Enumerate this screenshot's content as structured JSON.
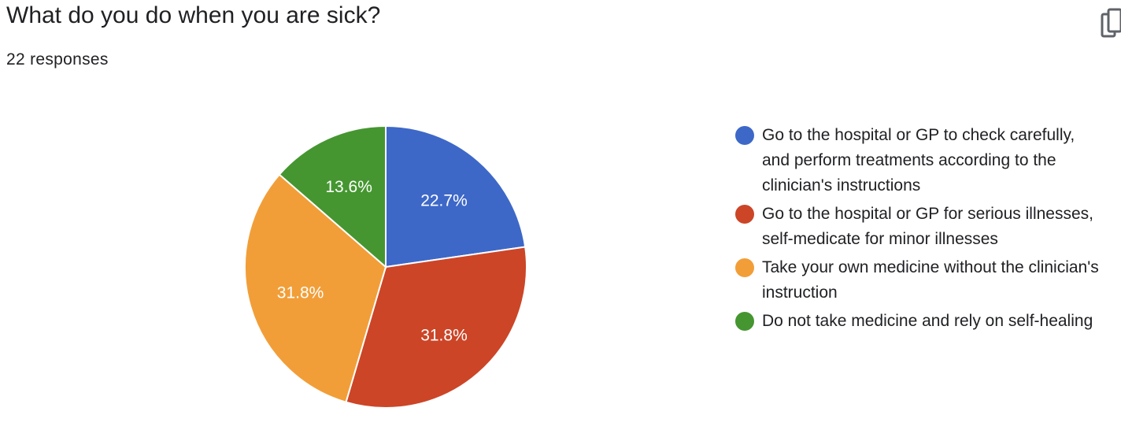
{
  "header": {
    "title": "What do you do when you are sick?",
    "responses": "22 responses"
  },
  "icons": {
    "copy": "copy-icon"
  },
  "chart_data": {
    "type": "pie",
    "start_angle_deg": 90,
    "direction": "clockwise",
    "slices": [
      {
        "label": "Go to the hospital or GP to check carefully, and perform treatments according to the clinician's instructions",
        "value": 22.7,
        "display": "22.7%",
        "color": "#3d68c8"
      },
      {
        "label": "Go to the hospital or GP for serious illnesses, self-medicate for minor illnesses",
        "value": 31.8,
        "display": "31.8%",
        "color": "#cc4527"
      },
      {
        "label": "Take your own medicine without the clinician's instruction",
        "value": 31.8,
        "display": "31.8%",
        "color": "#f29e38"
      },
      {
        "label": "Do not take medicine and rely on self-healing",
        "value": 13.6,
        "display": "13.6%",
        "color": "#459630"
      }
    ],
    "legend_position": "right"
  }
}
